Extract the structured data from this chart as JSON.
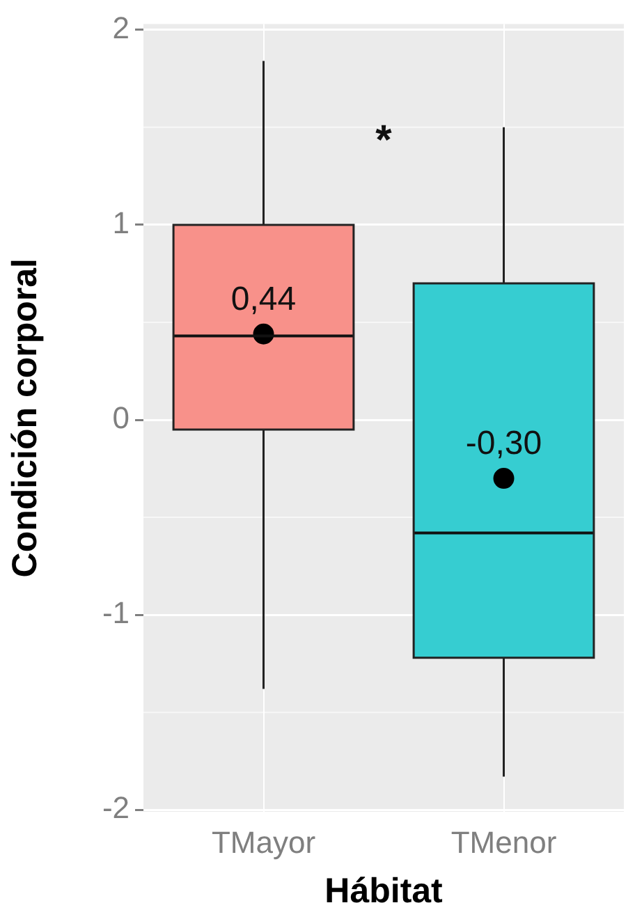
{
  "chart_data": {
    "type": "box",
    "xlabel": "Hábitat",
    "ylabel": "Condición corporal",
    "categories": [
      "TMayor",
      "TMenor"
    ],
    "ylim": [
      -2.01,
      2.03
    ],
    "yticks": [
      -2,
      -1,
      0,
      1,
      2
    ],
    "grid": true,
    "annotations": [
      "*"
    ],
    "series": [
      {
        "type": "box",
        "colors": [
          "#f8918a",
          "#36cdd1"
        ],
        "boxes": [
          {
            "low": -1.38,
            "q1": -0.05,
            "median": 0.43,
            "q3": 1.0,
            "high": 1.84
          },
          {
            "low": -1.83,
            "q1": -1.22,
            "median": -0.58,
            "q3": 0.7,
            "high": 1.5
          }
        ]
      },
      {
        "type": "scatter",
        "x": [
          "TMayor",
          "TMenor"
        ],
        "values": [
          0.44,
          -0.3
        ],
        "value_labels": [
          "0,44",
          "-0,30"
        ],
        "color": "#000000",
        "marker": "circle"
      }
    ]
  }
}
